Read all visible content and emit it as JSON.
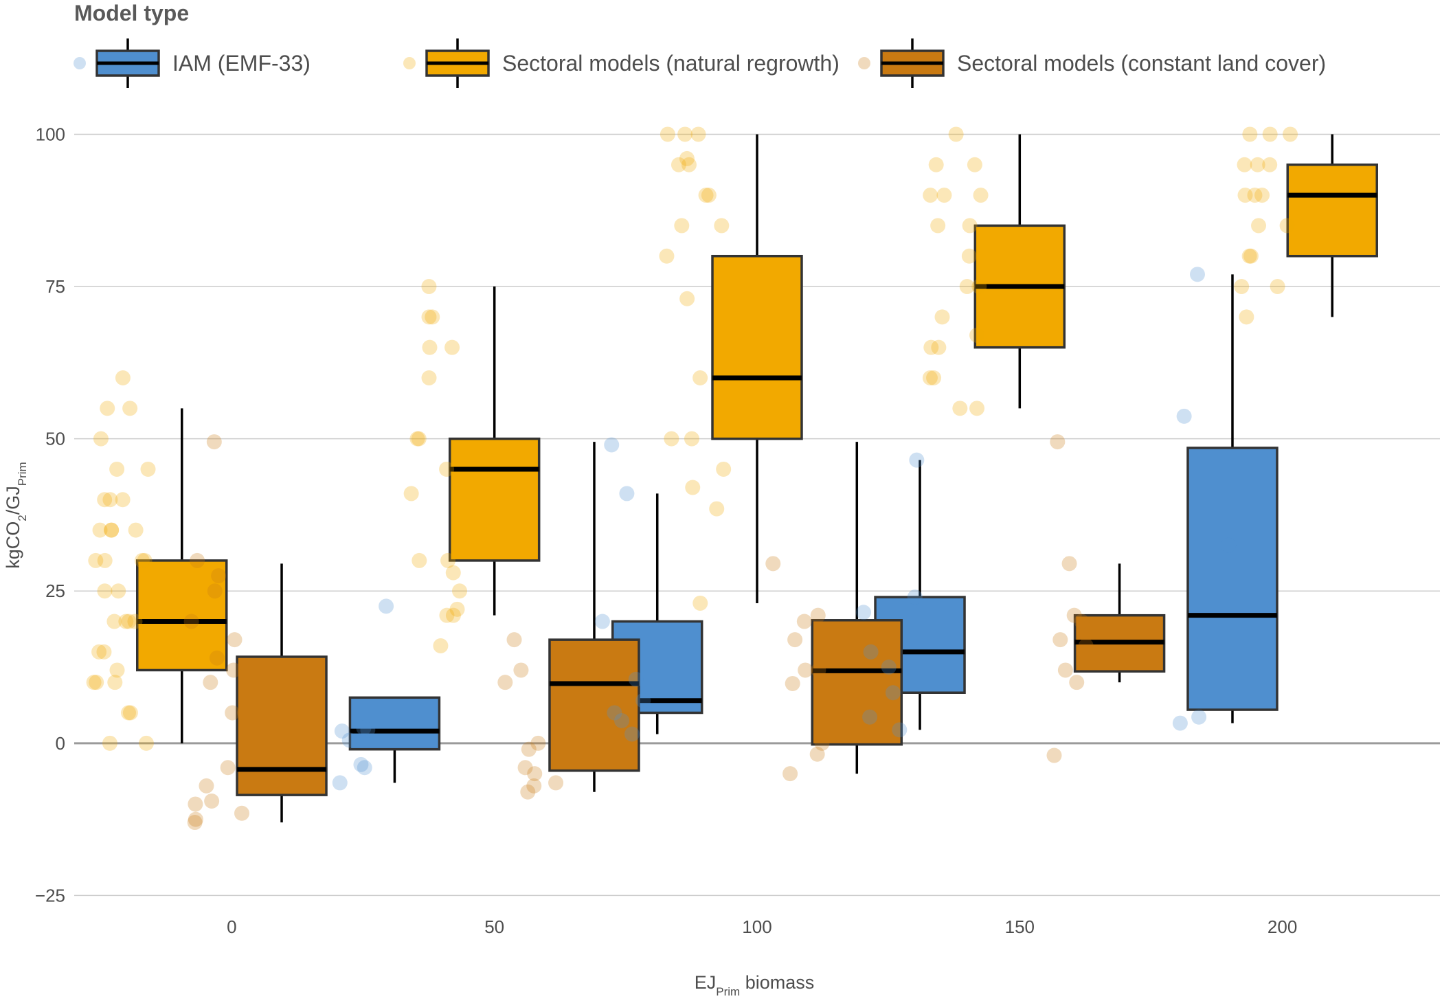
{
  "chart_data": {
    "type": "box",
    "legend": {
      "title": "Model type",
      "placement": "top"
    },
    "xlabel": {
      "main": "EJ",
      "sub": "Prim",
      "suffix": " biomass"
    },
    "ylabel": {
      "prefix": "kgCO",
      "sub1": "2",
      "mid": "/GJ",
      "sub2": "Prim"
    },
    "ylim": [
      -28,
      104
    ],
    "xlim": [
      -30,
      230
    ],
    "y_ticks": [
      {
        "value": 100,
        "label": "100"
      },
      {
        "value": 75,
        "label": "75"
      },
      {
        "value": 50,
        "label": "50"
      },
      {
        "value": 25,
        "label": "25"
      },
      {
        "value": 0,
        "label": "0"
      },
      {
        "value": -25,
        "label": "−25"
      }
    ],
    "x_ticks": [
      {
        "value": 0,
        "label": "0"
      },
      {
        "value": 50,
        "label": "50"
      },
      {
        "value": 100,
        "label": "100"
      },
      {
        "value": 150,
        "label": "150"
      },
      {
        "value": 200,
        "label": "200"
      }
    ],
    "grid": true,
    "series": [
      {
        "name": "IAM (EMF-33)",
        "color": "#4f8fcf",
        "boxes": [
          {
            "x": 50,
            "min": -6.5,
            "q1": -1,
            "median": 2,
            "q3": 7.5,
            "max": 7.5,
            "points": [
              2.5,
              2.2,
              2,
              0.5,
              -3.5,
              -4,
              -6.5,
              22.5
            ]
          },
          {
            "x": 100,
            "min": 1.5,
            "q1": 5,
            "median": 7,
            "q3": 20,
            "max": 41,
            "points": [
              1.5,
              3.7,
              5,
              7,
              10.5,
              20,
              41,
              49
            ]
          },
          {
            "x": 150,
            "min": 2.2,
            "q1": 8.3,
            "median": 15,
            "q3": 24,
            "max": 46.5,
            "points": [
              2.2,
              4.3,
              8.3,
              12.5,
              15,
              21.5,
              24,
              46.5
            ]
          },
          {
            "x": 200,
            "min": 3.3,
            "q1": 5.5,
            "median": 21,
            "q3": 48.5,
            "max": 77,
            "points": [
              3.3,
              4.3,
              32.5,
              53.7,
              77
            ]
          }
        ]
      },
      {
        "name": "Sectoral models (natural regrowth)",
        "color": "#f2a900",
        "boxes": [
          {
            "x": 0,
            "min": 0,
            "q1": 12,
            "median": 20,
            "q3": 30,
            "max": 55,
            "points": [
              60,
              55,
              55,
              50,
              45,
              45,
              40,
              40,
              40,
              35,
              35,
              35,
              35,
              30,
              30,
              30,
              30,
              25,
              25,
              20,
              20,
              20,
              20,
              15,
              15,
              12,
              10,
              10,
              10,
              5,
              5,
              0,
              0
            ]
          },
          {
            "x": 50,
            "min": 21,
            "q1": 30,
            "median": 45,
            "q3": 50,
            "max": 75,
            "points": [
              75,
              70,
              70,
              65,
              65,
              60,
              50,
              50,
              45,
              41,
              30,
              30,
              28,
              25,
              22,
              21,
              21,
              16
            ]
          },
          {
            "x": 100,
            "min": 23,
            "q1": 50,
            "median": 60,
            "q3": 80,
            "max": 100,
            "points": [
              100,
              100,
              100,
              96,
              95,
              95,
              90,
              90,
              85,
              85,
              80,
              73,
              60,
              50,
              50,
              45,
              42,
              38.5,
              23
            ]
          },
          {
            "x": 150,
            "min": 55,
            "q1": 65,
            "median": 75,
            "q3": 85,
            "max": 100,
            "points": [
              100,
              95,
              95,
              90,
              90,
              90,
              85,
              85,
              80,
              75,
              75,
              70,
              67,
              65,
              65,
              60,
              60,
              55,
              55
            ]
          },
          {
            "x": 200,
            "min": 70,
            "q1": 80,
            "median": 90,
            "q3": 95,
            "max": 100,
            "points": [
              100,
              100,
              100,
              95,
              95,
              95,
              90,
              90,
              90,
              85,
              85,
              80,
              80,
              75,
              75,
              70
            ]
          }
        ]
      },
      {
        "name": "Sectoral models (constant land cover)",
        "color": "#c97a12",
        "boxes": [
          {
            "x": 0,
            "min": -13,
            "q1": -8.5,
            "median": -4.3,
            "q3": 14.2,
            "max": 29.5,
            "points": [
              49.5,
              30,
              27.5,
              25,
              20,
              17,
              14,
              12,
              10,
              5,
              5,
              -4,
              -7,
              -9.5,
              -10,
              -11.5,
              -12.5,
              -13
            ]
          },
          {
            "x": 50,
            "min": -8,
            "q1": -4.5,
            "median": 9.8,
            "q3": 17,
            "max": 49.5,
            "points": [
              17,
              12,
              10,
              0,
              -1,
              -4,
              -5,
              -6.5,
              -7,
              -8
            ]
          },
          {
            "x": 100,
            "min": -5,
            "q1": -0.2,
            "median": 11.9,
            "q3": 20.2,
            "max": 49.5,
            "points": [
              29.5,
              21,
              20,
              17,
              12,
              12,
              9.8,
              0,
              -1.8,
              -5
            ]
          },
          {
            "x": 150,
            "min": 10,
            "q1": 11.8,
            "median": 16.6,
            "q3": 21,
            "max": 29.5,
            "points": [
              49.5,
              29.5,
              21,
              20,
              17,
              16,
              12,
              10,
              -2
            ]
          }
        ]
      }
    ]
  }
}
